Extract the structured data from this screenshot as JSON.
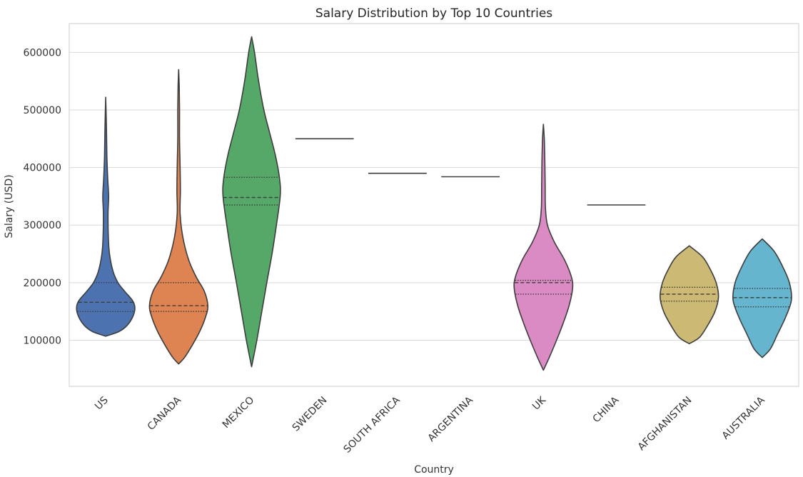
{
  "chart_data": {
    "type": "violin",
    "title": "Salary Distribution by Top 10 Countries",
    "xlabel": "Country",
    "ylabel": "Salary (USD)",
    "ylim": [
      20000,
      650000
    ],
    "yticks": [
      100000,
      200000,
      300000,
      400000,
      500000,
      600000
    ],
    "grid": true,
    "inner": "quartile",
    "categories": [
      "US",
      "CANADA",
      "MEXICO",
      "SWEDEN",
      "SOUTH AFRICA",
      "ARGENTINA",
      "UK",
      "CHINA",
      "AFGHANISTAN",
      "AUSTRALIA"
    ],
    "violins": [
      {
        "category": "US",
        "color": "#4c72b0",
        "min": 107000,
        "max": 522000,
        "q1": 150000,
        "median": 166000,
        "q3": 200000,
        "profile": [
          [
            107000,
            0
          ],
          [
            115000,
            0.45
          ],
          [
            125000,
            0.72
          ],
          [
            140000,
            0.92
          ],
          [
            155000,
            1.0
          ],
          [
            168000,
            0.93
          ],
          [
            185000,
            0.65
          ],
          [
            200000,
            0.42
          ],
          [
            220000,
            0.25
          ],
          [
            250000,
            0.13
          ],
          [
            280000,
            0.09
          ],
          [
            320000,
            0.08
          ],
          [
            350000,
            0.1
          ],
          [
            380000,
            0.07
          ],
          [
            420000,
            0.04
          ],
          [
            470000,
            0.025
          ],
          [
            522000,
            0
          ]
        ]
      },
      {
        "category": "CANADA",
        "color": "#dd8452",
        "min": 59000,
        "max": 570000,
        "q1": 150000,
        "median": 160000,
        "q3": 200000,
        "profile": [
          [
            59000,
            0
          ],
          [
            70000,
            0.2
          ],
          [
            90000,
            0.45
          ],
          [
            115000,
            0.72
          ],
          [
            140000,
            0.92
          ],
          [
            160000,
            1.0
          ],
          [
            185000,
            0.88
          ],
          [
            210000,
            0.6
          ],
          [
            240000,
            0.34
          ],
          [
            280000,
            0.14
          ],
          [
            320000,
            0.05
          ],
          [
            360000,
            0.06
          ],
          [
            400000,
            0.05
          ],
          [
            450000,
            0.03
          ],
          [
            500000,
            0.03
          ],
          [
            540000,
            0.02
          ],
          [
            570000,
            0
          ]
        ]
      },
      {
        "category": "MEXICO",
        "color": "#55a868",
        "min": 54000,
        "max": 627000,
        "q1": 335000,
        "median": 348000,
        "q3": 383000,
        "profile": [
          [
            54000,
            0
          ],
          [
            100000,
            0.18
          ],
          [
            150000,
            0.35
          ],
          [
            200000,
            0.52
          ],
          [
            250000,
            0.7
          ],
          [
            300000,
            0.85
          ],
          [
            350000,
            0.98
          ],
          [
            380000,
            0.96
          ],
          [
            420000,
            0.82
          ],
          [
            460000,
            0.62
          ],
          [
            500000,
            0.42
          ],
          [
            550000,
            0.24
          ],
          [
            600000,
            0.1
          ],
          [
            627000,
            0
          ]
        ]
      },
      {
        "category": "SWEDEN",
        "color": "#c44e52",
        "single": 450000
      },
      {
        "category": "SOUTH AFRICA",
        "color": "#8172b3",
        "single": 390000
      },
      {
        "category": "ARGENTINA",
        "color": "#937860",
        "single": 384000
      },
      {
        "category": "UK",
        "color": "#da8bc3",
        "min": 48000,
        "max": 475000,
        "q1": 180000,
        "median": 200000,
        "q3": 204000,
        "profile": [
          [
            48000,
            0
          ],
          [
            70000,
            0.2
          ],
          [
            100000,
            0.45
          ],
          [
            130000,
            0.68
          ],
          [
            160000,
            0.88
          ],
          [
            190000,
            1.0
          ],
          [
            210000,
            0.96
          ],
          [
            240000,
            0.72
          ],
          [
            270000,
            0.38
          ],
          [
            300000,
            0.14
          ],
          [
            330000,
            0.07
          ],
          [
            370000,
            0.06
          ],
          [
            410000,
            0.05
          ],
          [
            450000,
            0.03
          ],
          [
            475000,
            0
          ]
        ]
      },
      {
        "category": "CHINA",
        "color": "#8c8c8c",
        "single": 335000
      },
      {
        "category": "AFGHANISTAN",
        "color": "#ccb974",
        "min": 94000,
        "max": 264000,
        "q1": 168000,
        "median": 180000,
        "q3": 192000,
        "profile": [
          [
            94000,
            0
          ],
          [
            105000,
            0.35
          ],
          [
            125000,
            0.62
          ],
          [
            150000,
            0.88
          ],
          [
            175000,
            1.0
          ],
          [
            200000,
            0.92
          ],
          [
            225000,
            0.7
          ],
          [
            245000,
            0.45
          ],
          [
            264000,
            0
          ]
        ]
      },
      {
        "category": "AUSTRALIA",
        "color": "#64b5cd",
        "min": 70000,
        "max": 276000,
        "q1": 158000,
        "median": 174000,
        "q3": 190000,
        "profile": [
          [
            70000,
            0
          ],
          [
            85000,
            0.28
          ],
          [
            110000,
            0.52
          ],
          [
            140000,
            0.8
          ],
          [
            170000,
            1.0
          ],
          [
            200000,
            0.93
          ],
          [
            230000,
            0.68
          ],
          [
            255000,
            0.4
          ],
          [
            276000,
            0
          ]
        ]
      }
    ]
  }
}
